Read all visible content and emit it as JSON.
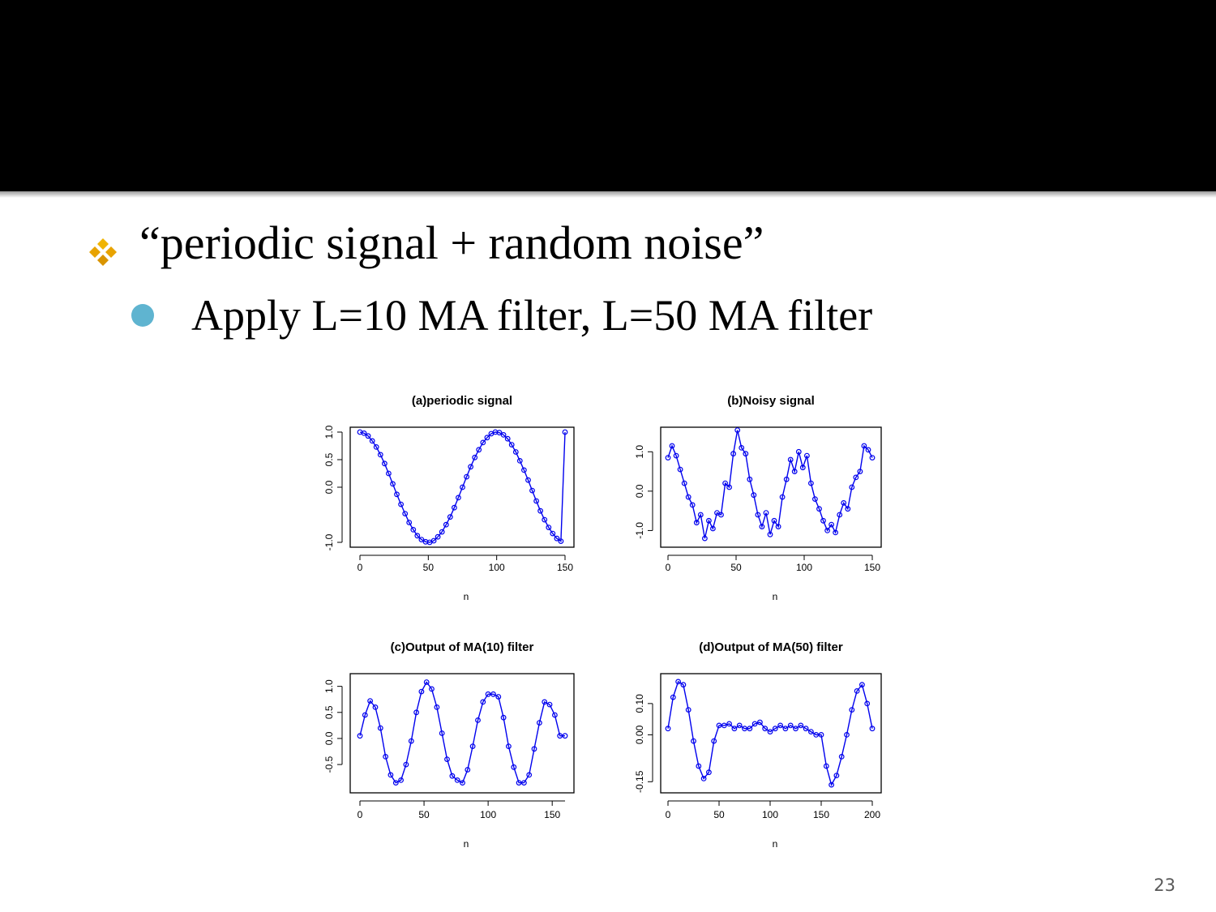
{
  "slide": {
    "bullet1_text": "“periodic signal + random noise”",
    "bullet2_text": "Apply L=10 MA filter, L=50 MA filter",
    "page_number": "23",
    "colors": {
      "bar": "#000000",
      "sub_bullet": "#5fb4d0",
      "main_bullet": "#e8a300",
      "series": "#0000ee"
    },
    "icons": {
      "main_bullet": "four-diamond-bullet-icon",
      "sub_bullet": "circle-bullet-icon"
    }
  },
  "chart_data": [
    {
      "type": "line",
      "title": "(a)periodic signal",
      "xlabel": "n",
      "xlim": [
        0,
        150
      ],
      "ylim": [
        -1.0,
        1.0
      ],
      "xticks": [
        "0",
        "50",
        "100",
        "150"
      ],
      "yticks": [
        "-1.0",
        "0.0",
        "0.5",
        "1.0"
      ],
      "x": [
        0,
        3,
        6,
        9,
        12,
        15,
        18,
        21,
        24,
        27,
        30,
        33,
        36,
        39,
        42,
        45,
        48,
        51,
        54,
        57,
        60,
        63,
        66,
        69,
        72,
        75,
        78,
        81,
        84,
        87,
        90,
        93,
        96,
        99,
        102,
        105,
        108,
        111,
        114,
        117,
        120,
        123,
        126,
        129,
        132,
        135,
        138,
        141,
        144,
        147,
        150
      ],
      "values": [
        1.0,
        0.98,
        0.93,
        0.84,
        0.73,
        0.59,
        0.43,
        0.25,
        0.06,
        -0.13,
        -0.31,
        -0.48,
        -0.64,
        -0.77,
        -0.88,
        -0.95,
        -0.99,
        -1.0,
        -0.97,
        -0.9,
        -0.81,
        -0.68,
        -0.54,
        -0.37,
        -0.19,
        0.0,
        0.19,
        0.37,
        0.54,
        0.68,
        0.81,
        0.9,
        0.97,
        1.0,
        0.99,
        0.95,
        0.88,
        0.77,
        0.64,
        0.48,
        0.31,
        0.13,
        -0.06,
        -0.25,
        -0.43,
        -0.59,
        -0.73,
        -0.84,
        -0.93,
        -0.98,
        1.0
      ]
    },
    {
      "type": "line",
      "title": "(b)Noisy signal",
      "xlabel": "n",
      "xlim": [
        0,
        150
      ],
      "ylim": [
        -1.3,
        1.5
      ],
      "xticks": [
        "0",
        "50",
        "100",
        "150"
      ],
      "yticks": [
        "-1.0",
        "0.0",
        "1.0"
      ],
      "x": [
        0,
        3,
        6,
        9,
        12,
        15,
        18,
        21,
        24,
        27,
        30,
        33,
        36,
        39,
        42,
        45,
        48,
        51,
        54,
        57,
        60,
        63,
        66,
        69,
        72,
        75,
        78,
        81,
        84,
        87,
        90,
        93,
        96,
        99,
        102,
        105,
        108,
        111,
        114,
        117,
        120,
        123,
        126,
        129,
        132,
        135,
        138,
        141,
        144,
        147,
        150
      ],
      "values": [
        0.85,
        1.15,
        0.9,
        0.55,
        0.2,
        -0.15,
        -0.35,
        -0.8,
        -0.6,
        -1.2,
        -0.75,
        -0.95,
        -0.55,
        -0.6,
        0.2,
        0.1,
        0.95,
        1.55,
        1.1,
        0.95,
        0.3,
        -0.1,
        -0.6,
        -0.9,
        -0.55,
        -1.1,
        -0.75,
        -0.9,
        -0.15,
        0.3,
        0.8,
        0.5,
        1.0,
        0.6,
        0.9,
        0.2,
        -0.2,
        -0.45,
        -0.75,
        -1.0,
        -0.85,
        -1.05,
        -0.6,
        -0.3,
        -0.45,
        0.1,
        0.35,
        0.5,
        1.15,
        1.05,
        0.85
      ]
    },
    {
      "type": "line",
      "title": "(c)Output of MA(10) filter",
      "xlabel": "n",
      "xlim": [
        0,
        160
      ],
      "ylim": [
        -0.95,
        1.15
      ],
      "xticks": [
        "0",
        "50",
        "100",
        "150"
      ],
      "yticks": [
        "-0.5",
        "0.0",
        "0.5",
        "1.0"
      ],
      "x": [
        0,
        4,
        8,
        12,
        16,
        20,
        24,
        28,
        32,
        36,
        40,
        44,
        48,
        52,
        56,
        60,
        64,
        68,
        72,
        76,
        80,
        84,
        88,
        92,
        96,
        100,
        104,
        108,
        112,
        116,
        120,
        124,
        128,
        132,
        136,
        140,
        144,
        148,
        152,
        156,
        160
      ],
      "values": [
        0.05,
        0.45,
        0.72,
        0.6,
        0.2,
        -0.35,
        -0.7,
        -0.85,
        -0.8,
        -0.5,
        -0.05,
        0.5,
        0.9,
        1.08,
        0.95,
        0.6,
        0.1,
        -0.4,
        -0.72,
        -0.8,
        -0.85,
        -0.6,
        -0.15,
        0.35,
        0.7,
        0.85,
        0.85,
        0.8,
        0.4,
        -0.15,
        -0.55,
        -0.85,
        -0.85,
        -0.7,
        -0.2,
        0.3,
        0.7,
        0.65,
        0.45,
        0.05,
        0.05
      ]
    },
    {
      "type": "line",
      "title": "(d)Output of MA(50) filter",
      "xlabel": "n",
      "xlim": [
        0,
        200
      ],
      "ylim": [
        -0.17,
        0.18
      ],
      "xticks": [
        "0",
        "50",
        "100",
        "150",
        "200"
      ],
      "yticks": [
        "-0.15",
        "0.00",
        "0.10"
      ],
      "x": [
        0,
        5,
        10,
        15,
        20,
        25,
        30,
        35,
        40,
        45,
        50,
        55,
        60,
        65,
        70,
        75,
        80,
        85,
        90,
        95,
        100,
        105,
        110,
        115,
        120,
        125,
        130,
        135,
        140,
        145,
        150,
        155,
        160,
        165,
        170,
        175,
        180,
        185,
        190,
        195,
        200
      ],
      "values": [
        0.02,
        0.12,
        0.17,
        0.16,
        0.08,
        -0.02,
        -0.1,
        -0.14,
        -0.12,
        -0.02,
        0.03,
        0.03,
        0.035,
        0.02,
        0.03,
        0.02,
        0.02,
        0.035,
        0.04,
        0.02,
        0.01,
        0.02,
        0.03,
        0.02,
        0.03,
        0.02,
        0.03,
        0.02,
        0.01,
        0.0,
        0.0,
        -0.1,
        -0.16,
        -0.13,
        -0.07,
        0.0,
        0.08,
        0.14,
        0.16,
        0.1,
        0.02
      ]
    }
  ]
}
